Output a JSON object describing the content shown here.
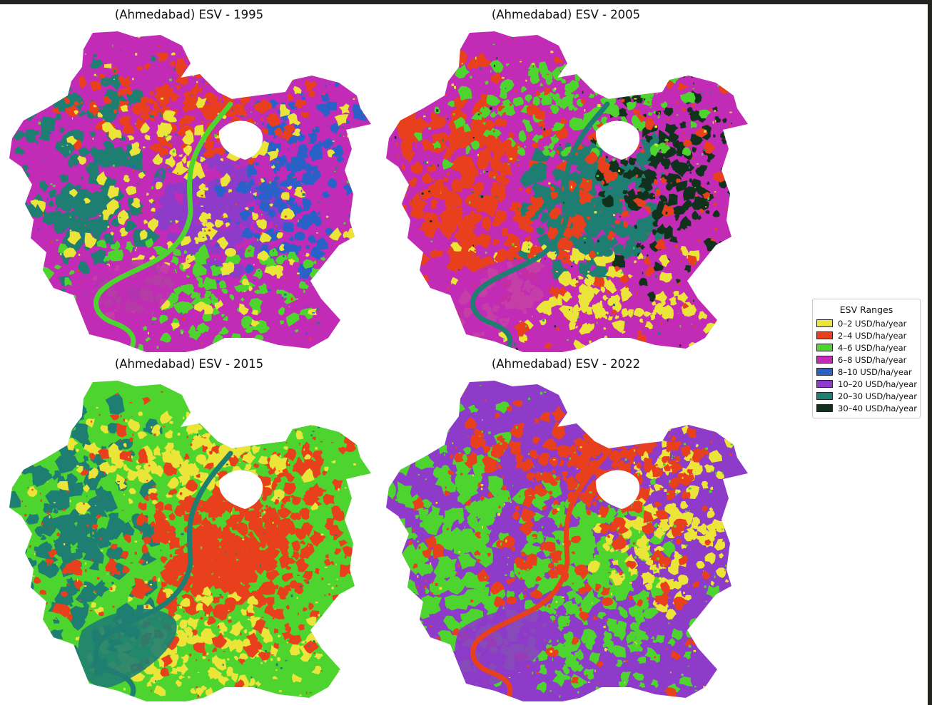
{
  "maps": [
    {
      "title": "(Ahmedabad) ESV - 1995",
      "base": 3,
      "layers": [
        6,
        5,
        4,
        2,
        1,
        0
      ],
      "river": 2,
      "bend": 3,
      "lake": 0
    },
    {
      "title": "(Ahmedabad) ESV - 2005",
      "base": 3,
      "layers": [
        1,
        6,
        7,
        0,
        2,
        1
      ],
      "river": 6,
      "bend": 3,
      "lake": 6
    },
    {
      "title": "(Ahmedabad) ESV - 2015",
      "base": 2,
      "layers": [
        6,
        1,
        1,
        0,
        0,
        1
      ],
      "river": 6,
      "bend": 6,
      "lake": 1
    },
    {
      "title": "(Ahmedabad) ESV - 2022",
      "base": 5,
      "layers": [
        2,
        2,
        0,
        2,
        1,
        1
      ],
      "river": 1,
      "bend": 5,
      "lake": 1
    }
  ],
  "legend": {
    "title": "ESV Ranges",
    "items": [
      {
        "label": "0–2 USD/ha/year",
        "color": "#ebe53a"
      },
      {
        "label": "2–4 USD/ha/year",
        "color": "#e8401d"
      },
      {
        "label": "4–6 USD/ha/year",
        "color": "#4ed42f"
      },
      {
        "label": "6–8 USD/ha/year",
        "color": "#c12bb5"
      },
      {
        "label": "8–10 USD/ha/year",
        "color": "#2a61c9"
      },
      {
        "label": "10–20 USD/ha/year",
        "color": "#8e3bc9"
      },
      {
        "label": "20–30 USD/ha/year",
        "color": "#1f7e72"
      },
      {
        "label": "30–40 USD/ha/year",
        "color": "#10321c"
      }
    ]
  }
}
